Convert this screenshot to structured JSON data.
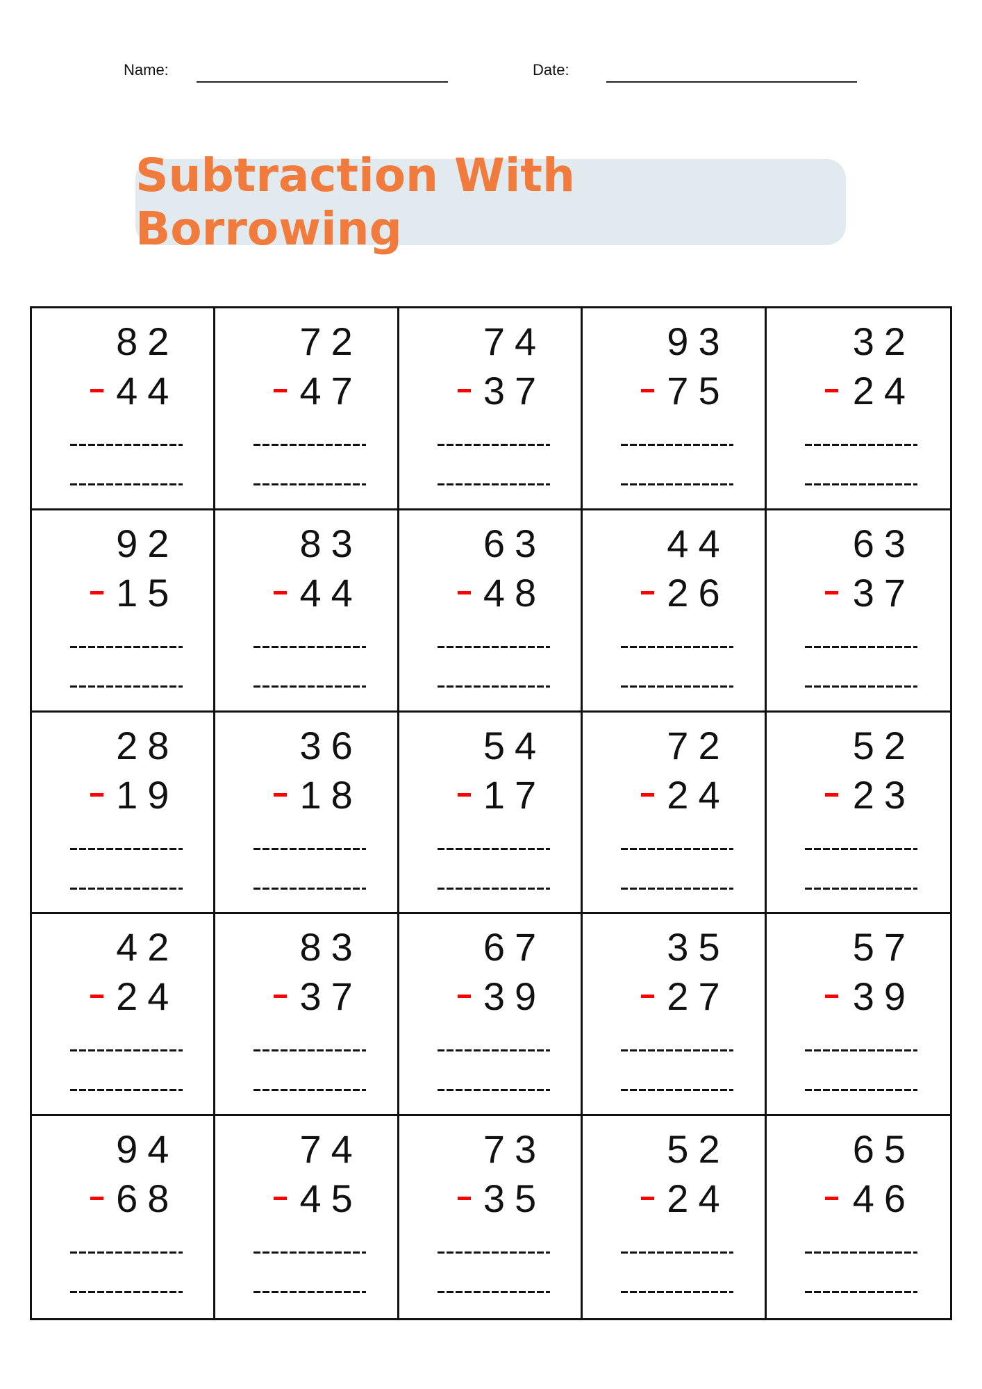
{
  "header": {
    "name_label": "Name:",
    "date_label": "Date:"
  },
  "title": "Subtraction With Borrowing",
  "colors": {
    "title": "#f07b3c",
    "title_bg": "#e1eaee",
    "minus_sign": "#ff0000"
  },
  "problems": [
    {
      "top": "82",
      "bottom": "44"
    },
    {
      "top": "72",
      "bottom": "47"
    },
    {
      "top": "74",
      "bottom": "37"
    },
    {
      "top": "93",
      "bottom": "75"
    },
    {
      "top": "32",
      "bottom": "24"
    },
    {
      "top": "92",
      "bottom": "15"
    },
    {
      "top": "83",
      "bottom": "44"
    },
    {
      "top": "63",
      "bottom": "48"
    },
    {
      "top": "44",
      "bottom": "26"
    },
    {
      "top": "63",
      "bottom": "37"
    },
    {
      "top": "28",
      "bottom": "19"
    },
    {
      "top": "36",
      "bottom": "18"
    },
    {
      "top": "54",
      "bottom": "17"
    },
    {
      "top": "72",
      "bottom": "24"
    },
    {
      "top": "52",
      "bottom": "23"
    },
    {
      "top": "42",
      "bottom": "24"
    },
    {
      "top": "83",
      "bottom": "37"
    },
    {
      "top": "67",
      "bottom": "39"
    },
    {
      "top": "35",
      "bottom": "27"
    },
    {
      "top": "57",
      "bottom": "39"
    },
    {
      "top": "94",
      "bottom": "68"
    },
    {
      "top": "74",
      "bottom": "45"
    },
    {
      "top": "73",
      "bottom": "35"
    },
    {
      "top": "52",
      "bottom": "24"
    },
    {
      "top": "65",
      "bottom": "46"
    }
  ]
}
